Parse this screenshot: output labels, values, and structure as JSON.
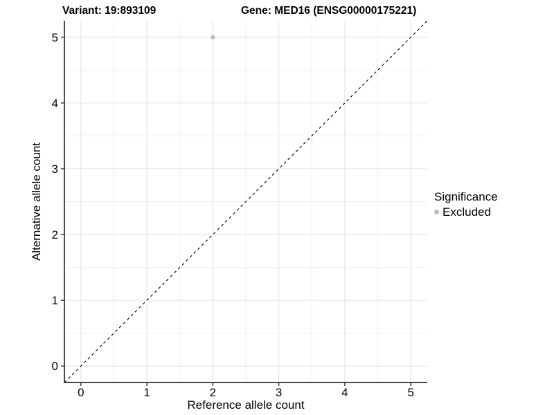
{
  "chart_data": {
    "type": "scatter",
    "title_variant": "Variant: 19:893109",
    "title_gene": "Gene: MED16 (ENSG00000175221)",
    "xlabel": "Reference allele count",
    "ylabel": "Alternative allele count",
    "xlim": [
      -0.25,
      5.25
    ],
    "ylim": [
      -0.25,
      5.25
    ],
    "x_ticks": [
      0,
      1,
      2,
      3,
      4,
      5
    ],
    "y_ticks": [
      0,
      1,
      2,
      3,
      4,
      5
    ],
    "minor_grid_interval": 0.5,
    "grid": true,
    "legend_position": "right",
    "series": [
      {
        "name": "Excluded",
        "marker": "circle",
        "color": "#bdbdbd",
        "points": [
          {
            "x": 2,
            "y": 5
          }
        ]
      }
    ],
    "reference_line": {
      "kind": "identity",
      "line_style": "dashed",
      "color": "#000000",
      "from": [
        -0.25,
        -0.25
      ],
      "to": [
        5.25,
        5.25
      ]
    },
    "legend": {
      "title": "Significance",
      "items": [
        {
          "label": "Excluded",
          "color": "#bdbdbd",
          "marker": "circle"
        }
      ]
    },
    "style": {
      "background": "#ffffff",
      "grid_major_color": "#e3e3e3",
      "grid_minor_color": "#f1f1f1",
      "axis_line_color": "#2b2b2b",
      "tick_color": "#333333",
      "text_color": "#000000"
    }
  }
}
